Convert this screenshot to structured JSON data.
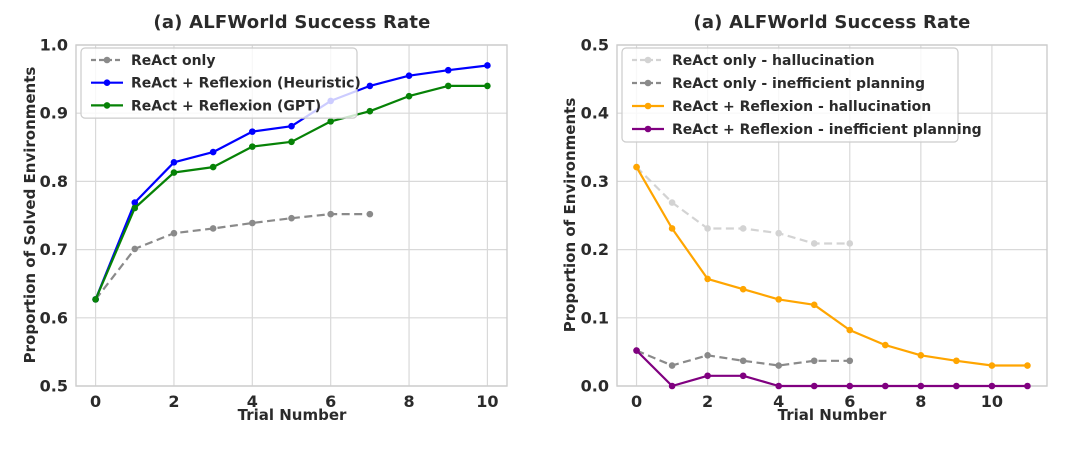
{
  "figure": {
    "background": "#ffffff",
    "grid_color": "#d9d9d9",
    "spine_color": "#cccccc",
    "text_color": "#2b2b2b"
  },
  "chart_data": [
    {
      "type": "line",
      "title": "(a) ALFWorld Success Rate",
      "xlabel": "Trial Number",
      "ylabel": "Proportion of Solved Environments",
      "xlim": [
        -0.5,
        10.5
      ],
      "ylim": [
        0.5,
        1.0
      ],
      "xtick_values": [
        0,
        2,
        4,
        6,
        8,
        10
      ],
      "xtick_labels": [
        "0",
        "2",
        "4",
        "6",
        "8",
        "10"
      ],
      "ytick_values": [
        0.5,
        0.6,
        0.7,
        0.8,
        0.9,
        1.0
      ],
      "ytick_labels": [
        "0.5",
        "0.6",
        "0.7",
        "0.8",
        "0.9",
        "1.0"
      ],
      "grid": true,
      "legend_position": "upper-left",
      "series": [
        {
          "name": "ReAct only",
          "color": "#8a8a8a",
          "style": "dashed",
          "x": [
            0,
            1,
            2,
            3,
            4,
            5,
            6,
            7
          ],
          "values": [
            0.627,
            0.701,
            0.724,
            0.731,
            0.739,
            0.746,
            0.752,
            0.752
          ]
        },
        {
          "name": "ReAct + Reflexion (Heuristic)",
          "color": "#0000ff",
          "style": "solid",
          "x": [
            0,
            1,
            2,
            3,
            4,
            5,
            6,
            7,
            8,
            9,
            10
          ],
          "values": [
            0.627,
            0.769,
            0.828,
            0.843,
            0.873,
            0.881,
            0.918,
            0.94,
            0.955,
            0.963,
            0.97
          ]
        },
        {
          "name": "ReAct + Reflexion (GPT)",
          "color": "#068206",
          "style": "solid",
          "x": [
            0,
            1,
            2,
            3,
            4,
            5,
            6,
            7,
            8,
            9,
            10
          ],
          "values": [
            0.627,
            0.761,
            0.813,
            0.821,
            0.851,
            0.858,
            0.888,
            0.903,
            0.925,
            0.94,
            0.94
          ]
        }
      ]
    },
    {
      "type": "line",
      "title": "(a) ALFWorld Success Rate",
      "xlabel": "Trial Number",
      "ylabel": "Proportion of Environments",
      "xlim": [
        -0.55,
        11.55
      ],
      "ylim": [
        0.0,
        0.5
      ],
      "xtick_values": [
        0,
        2,
        4,
        6,
        8,
        10
      ],
      "xtick_labels": [
        "0",
        "2",
        "4",
        "6",
        "8",
        "10"
      ],
      "ytick_values": [
        0.0,
        0.1,
        0.2,
        0.3,
        0.4,
        0.5
      ],
      "ytick_labels": [
        "0.0",
        "0.1",
        "0.2",
        "0.3",
        "0.4",
        "0.5"
      ],
      "grid": true,
      "legend_position": "upper-left",
      "series": [
        {
          "name": "ReAct only - hallucination",
          "color": "#d3d3d3",
          "style": "dashed",
          "x": [
            0,
            1,
            2,
            3,
            4,
            5,
            6
          ],
          "values": [
            0.321,
            0.269,
            0.231,
            0.231,
            0.224,
            0.209,
            0.209
          ]
        },
        {
          "name": "ReAct only - inefficient planning",
          "color": "#8a8a8a",
          "style": "dashed",
          "x": [
            0,
            1,
            2,
            3,
            4,
            5,
            6
          ],
          "values": [
            0.052,
            0.03,
            0.045,
            0.037,
            0.03,
            0.037,
            0.037
          ]
        },
        {
          "name": "ReAct + Reflexion - hallucination",
          "color": "#ffa500",
          "style": "solid",
          "x": [
            0,
            1,
            2,
            3,
            4,
            5,
            6,
            7,
            8,
            9,
            10,
            11
          ],
          "values": [
            0.321,
            0.231,
            0.157,
            0.142,
            0.127,
            0.119,
            0.082,
            0.06,
            0.045,
            0.037,
            0.03,
            0.03
          ]
        },
        {
          "name": "ReAct + Reflexion - inefficient planning",
          "color": "#800080",
          "style": "solid",
          "x": [
            0,
            1,
            2,
            3,
            4,
            5,
            6,
            7,
            8,
            9,
            10,
            11
          ],
          "values": [
            0.052,
            0.0,
            0.015,
            0.015,
            0.0,
            0.0,
            0.0,
            0.0,
            0.0,
            0.0,
            0.0,
            0.0
          ]
        }
      ]
    }
  ]
}
